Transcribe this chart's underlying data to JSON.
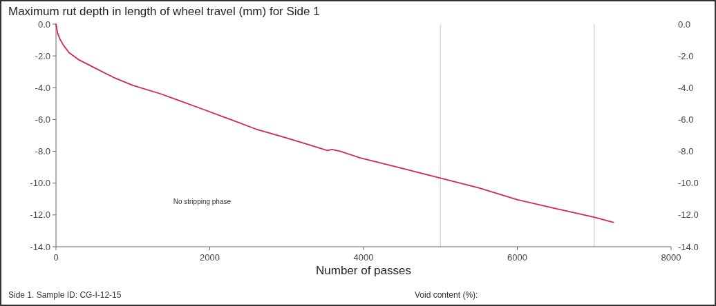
{
  "chart_data": {
    "type": "line",
    "title": "Maximum rut depth in length of  wheel travel (mm)  for Side 1",
    "xlabel": "Number of passes",
    "x": [
      0,
      20,
      51,
      100,
      171,
      300,
      470,
      770,
      1000,
      1370,
      1880,
      2270,
      2600,
      2990,
      3300,
      3530,
      3590,
      3700,
      3950,
      4400,
      4990,
      5500,
      6005,
      6500,
      6990,
      7250
    ],
    "series": [
      {
        "color": "#d4245a",
        "values": [
          0,
          -0.55,
          -0.94,
          -1.35,
          -1.8,
          -2.25,
          -2.67,
          -3.4,
          -3.85,
          -4.4,
          -5.3,
          -6.0,
          -6.6,
          -7.15,
          -7.6,
          -7.95,
          -7.88,
          -8.0,
          -8.4,
          -8.95,
          -9.67,
          -10.3,
          -11.05,
          -11.6,
          -12.13,
          -12.47
        ]
      }
    ],
    "xlim": [
      0,
      8000
    ],
    "xticks": [
      0,
      2000,
      4000,
      6000,
      8000
    ],
    "ylim": [
      -14,
      0
    ],
    "yticks": [
      {
        "value": 0,
        "label": "0.0"
      },
      {
        "value": -2,
        "label": "-2.0"
      },
      {
        "value": -4,
        "label": "-4.0"
      },
      {
        "value": -6,
        "label": "-6.0"
      },
      {
        "value": -8,
        "label": "-8.0"
      },
      {
        "value": -10,
        "label": "-10.0"
      },
      {
        "value": -12,
        "label": "-12.0"
      },
      {
        "value": -14,
        "label": "-14.0"
      }
    ],
    "y2lim": [
      -14,
      0
    ],
    "y2ticks": [
      {
        "value": 0,
        "label": "0.0"
      },
      {
        "value": -2,
        "label": "-2.0"
      },
      {
        "value": -4,
        "label": "-4.0"
      },
      {
        "value": -6,
        "label": "-6.0"
      },
      {
        "value": -8,
        "label": "-8.0"
      },
      {
        "value": -10,
        "label": "-10.0"
      },
      {
        "value": -12,
        "label": "-12.0"
      },
      {
        "value": -14,
        "label": "-14.0"
      }
    ],
    "ref_lines": [
      {
        "axis": "x",
        "value": 5000,
        "color": "#d0d0d0"
      },
      {
        "axis": "x",
        "value": 7000,
        "color": "#d0d0d0"
      }
    ],
    "annotations": [
      "No stripping phase",
      "Side 1. Sample ID:   CG-I-12-15",
      "Void content (%):"
    ],
    "grid": false,
    "marker": "none",
    "line_style": "solid"
  }
}
